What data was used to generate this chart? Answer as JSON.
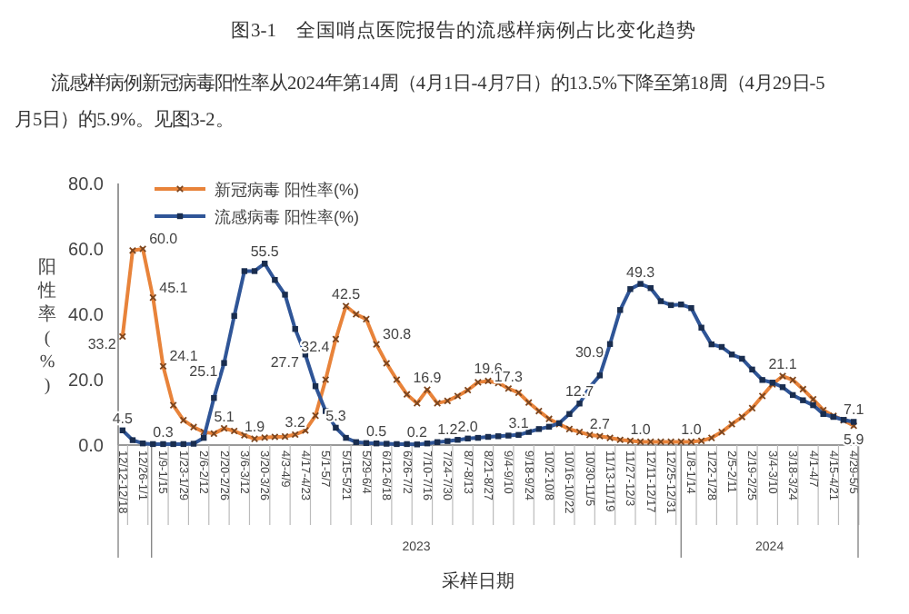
{
  "chart_data": {
    "type": "line",
    "title": "图3-1　全国哨点医院报告的流感样病例占比变化趋势",
    "subtitle": "流感样病例新冠病毒阳性率从2024年第14周（4月1日-4月7日）的13.5%下降至第18周（4月29日-5月5日）的5.9%。见图3-2。",
    "xlabel": "采样日期",
    "ylabel": "阳性率(%)",
    "annotations": [
      "2023",
      "2024"
    ],
    "x": [
      "2022-12-12",
      "2022-12-19",
      "2022-12-26",
      "2023-01-02",
      "2023-01-09",
      "2023-01-16",
      "2023-01-23",
      "2023-01-30",
      "2023-02-06",
      "2023-02-13",
      "2023-02-20",
      "2023-02-27",
      "2023-03-06",
      "2023-03-13",
      "2023-03-20",
      "2023-03-27",
      "2023-04-03",
      "2023-04-10",
      "2023-04-17",
      "2023-04-24",
      "2023-05-01",
      "2023-05-08",
      "2023-05-15",
      "2023-05-22",
      "2023-05-29",
      "2023-06-05",
      "2023-06-12",
      "2023-06-19",
      "2023-06-26",
      "2023-07-03",
      "2023-07-10",
      "2023-07-17",
      "2023-07-24",
      "2023-07-31",
      "2023-08-07",
      "2023-08-14",
      "2023-08-21",
      "2023-08-28",
      "2023-09-04",
      "2023-09-11",
      "2023-09-18",
      "2023-09-25",
      "2023-10-02",
      "2023-10-09",
      "2023-10-16",
      "2023-10-23",
      "2023-10-30",
      "2023-11-06",
      "2023-11-13",
      "2023-11-20",
      "2023-11-27",
      "2023-12-04",
      "2023-12-11",
      "2023-12-18",
      "2023-12-25",
      "2024-01-01",
      "2024-01-08",
      "2024-01-15",
      "2024-01-22",
      "2024-01-29",
      "2024-02-05",
      "2024-02-12",
      "2024-02-19",
      "2024-02-26",
      "2024-03-04",
      "2024-03-11",
      "2024-03-18",
      "2024-03-25",
      "2024-04-01",
      "2024-04-08",
      "2024-04-15",
      "2024-04-22",
      "2024-04-29"
    ],
    "xlim": [
      "2022-12-09",
      "2024-05-02"
    ],
    "xticks": [
      {
        "value": "2022-12-12",
        "label": "12/12-12/18"
      },
      {
        "value": "2022-12-26",
        "label": "12/26-1/1"
      },
      {
        "value": "2023-01-09",
        "label": "1/9-1/15"
      },
      {
        "value": "2023-01-23",
        "label": "1/23-1/29"
      },
      {
        "value": "2023-02-06",
        "label": "2/6-2/12"
      },
      {
        "value": "2023-02-20",
        "label": "2/20-2/26"
      },
      {
        "value": "2023-03-06",
        "label": "3/6-3/12"
      },
      {
        "value": "2023-03-20",
        "label": "3/20-3/26"
      },
      {
        "value": "2023-04-03",
        "label": "4/3-4/9"
      },
      {
        "value": "2023-04-17",
        "label": "4/17-4/23"
      },
      {
        "value": "2023-05-01",
        "label": "5/1-5/7"
      },
      {
        "value": "2023-05-15",
        "label": "5/15-5/21"
      },
      {
        "value": "2023-05-29",
        "label": "5/29-6/4"
      },
      {
        "value": "2023-06-12",
        "label": "6/12-6/18"
      },
      {
        "value": "2023-06-26",
        "label": "6/26-7/2"
      },
      {
        "value": "2023-07-10",
        "label": "7/10-7/16"
      },
      {
        "value": "2023-07-24",
        "label": "7/24-7/30"
      },
      {
        "value": "2023-08-07",
        "label": "8/7-8/13"
      },
      {
        "value": "2023-08-21",
        "label": "8/21-8/27"
      },
      {
        "value": "2023-09-04",
        "label": "9/4-9/10"
      },
      {
        "value": "2023-09-18",
        "label": "9/18-9/24"
      },
      {
        "value": "2023-10-02",
        "label": "10/2-10/8"
      },
      {
        "value": "2023-10-16",
        "label": "10/16-10/22"
      },
      {
        "value": "2023-10-30",
        "label": "10/30-11/5"
      },
      {
        "value": "2023-11-13",
        "label": "11/13-11/19"
      },
      {
        "value": "2023-11-27",
        "label": "11/27-12/3"
      },
      {
        "value": "2023-12-11",
        "label": "12/11-12/17"
      },
      {
        "value": "2023-12-25",
        "label": "12/25-12/31"
      },
      {
        "value": "2024-01-08",
        "label": "1/8-1/14"
      },
      {
        "value": "2024-01-22",
        "label": "1/22-1/28"
      },
      {
        "value": "2024-02-05",
        "label": "2/5-2/11"
      },
      {
        "value": "2024-02-19",
        "label": "2/19-2/25"
      },
      {
        "value": "2024-03-04",
        "label": "3/4-3/10"
      },
      {
        "value": "2024-03-18",
        "label": "3/18-3/24"
      },
      {
        "value": "2024-04-01",
        "label": "4/1-4/7"
      },
      {
        "value": "2024-04-15",
        "label": "4/15-4/21"
      },
      {
        "value": "2024-04-29",
        "label": "4/29-5/5"
      }
    ],
    "ylim": [
      0,
      80
    ],
    "yticks": [
      {
        "value": 0,
        "label": "0.0"
      },
      {
        "value": 20,
        "label": "20.0"
      },
      {
        "value": 40,
        "label": "40.0"
      },
      {
        "value": 60,
        "label": "60.0"
      },
      {
        "value": 80,
        "label": "80.0"
      }
    ],
    "legend": "top left",
    "line_style": "solid",
    "series": [
      {
        "name": "新冠病毒 阳性率(%)",
        "color": "#e8833a",
        "marker": "cross",
        "values": [
          33.2,
          59.5,
          60.0,
          45.1,
          24.1,
          12.2,
          7.6,
          5.5,
          4.0,
          3.5,
          5.1,
          4.3,
          3.0,
          1.9,
          2.3,
          2.5,
          2.6,
          3.2,
          4.5,
          9.0,
          20.0,
          32.4,
          42.5,
          40.0,
          38.5,
          30.8,
          25.0,
          20.0,
          15.5,
          12.8,
          16.9,
          12.8,
          13.5,
          15.0,
          16.8,
          19.2,
          19.6,
          19.0,
          17.3,
          16.0,
          13.0,
          10.4,
          8.0,
          6.4,
          4.9,
          4.0,
          3.1,
          2.7,
          2.2,
          1.6,
          1.3,
          1.0,
          1.0,
          1.0,
          1.0,
          1.0,
          1.0,
          1.3,
          2.2,
          4.0,
          6.4,
          8.6,
          11.3,
          15.0,
          18.6,
          21.1,
          19.9,
          17.1,
          14.0,
          10.7,
          8.9,
          7.6,
          5.9
        ],
        "value_labels": [
          "33.2",
          null,
          "60.0",
          "45.1",
          "24.1",
          null,
          null,
          null,
          null,
          null,
          "5.1",
          null,
          null,
          "1.9",
          null,
          null,
          null,
          "3.2",
          null,
          null,
          null,
          "32.4",
          "42.5",
          null,
          null,
          "30.8",
          null,
          null,
          null,
          null,
          "16.9",
          null,
          null,
          null,
          null,
          null,
          "19.6",
          null,
          "17.3",
          null,
          null,
          null,
          null,
          null,
          null,
          null,
          null,
          "2.7",
          null,
          null,
          null,
          "1.0",
          null,
          null,
          null,
          null,
          "1.0",
          null,
          null,
          null,
          null,
          null,
          null,
          null,
          null,
          "21.1",
          null,
          null,
          null,
          null,
          null,
          null,
          "5.9"
        ]
      },
      {
        "name": "流感病毒 阳性率(%)",
        "color": "#2f5597",
        "marker": "square",
        "values": [
          4.5,
          1.5,
          0.5,
          0.3,
          0.3,
          0.3,
          0.3,
          0.4,
          2.2,
          14.4,
          25.1,
          39.5,
          53.2,
          53.2,
          55.5,
          50.5,
          46.0,
          35.5,
          27.7,
          18.0,
          10.4,
          5.3,
          2.2,
          0.9,
          0.6,
          0.5,
          0.4,
          0.3,
          0.3,
          0.2,
          0.5,
          0.9,
          1.2,
          1.6,
          2.0,
          2.2,
          2.5,
          2.7,
          2.9,
          3.1,
          4.0,
          4.9,
          5.6,
          6.7,
          9.5,
          12.7,
          17.7,
          21.3,
          30.9,
          41.3,
          47.7,
          49.3,
          48.0,
          44.0,
          42.8,
          43.0,
          41.9,
          35.9,
          30.8,
          30.0,
          27.7,
          26.4,
          23.1,
          19.9,
          19.1,
          17.7,
          15.3,
          13.7,
          12.2,
          9.5,
          8.6,
          7.7,
          7.1
        ],
        "value_labels": [
          "4.5",
          null,
          null,
          null,
          "0.3",
          null,
          null,
          null,
          null,
          null,
          "25.1",
          null,
          null,
          null,
          "55.5",
          null,
          null,
          null,
          "27.7",
          null,
          null,
          "5.3",
          null,
          null,
          null,
          "0.5",
          null,
          null,
          null,
          "0.2",
          null,
          null,
          "1.2",
          null,
          "2.0",
          null,
          null,
          null,
          null,
          "3.1",
          null,
          null,
          null,
          null,
          null,
          "12.7",
          null,
          null,
          "30.9",
          null,
          null,
          "49.3",
          null,
          null,
          null,
          null,
          null,
          null,
          null,
          null,
          null,
          null,
          null,
          null,
          null,
          null,
          null,
          null,
          null,
          null,
          null,
          null,
          "7.1"
        ]
      }
    ]
  }
}
